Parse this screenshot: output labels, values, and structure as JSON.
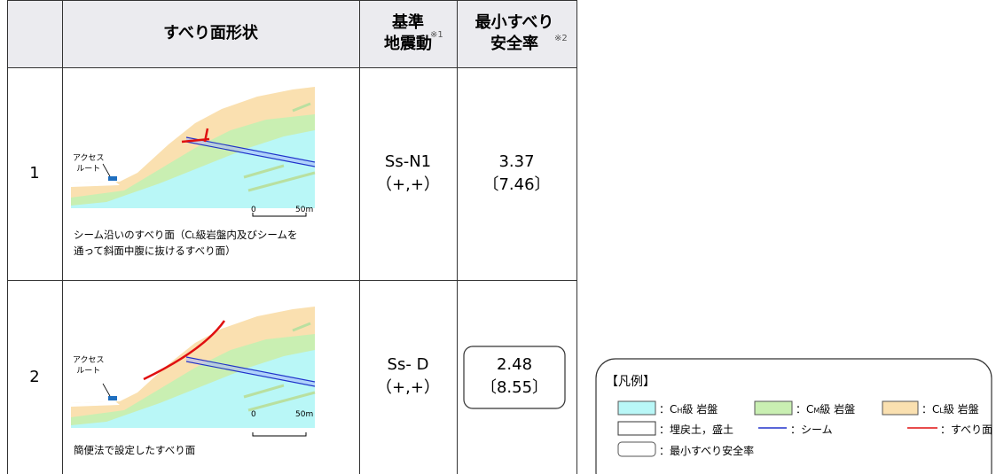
{
  "header": {
    "shape": "すべり面形状",
    "motion": [
      "基準",
      "地震動"
    ],
    "motion_note": "※1",
    "factor": [
      "最小すべり",
      "安全率"
    ],
    "factor_note": "※2"
  },
  "rows": [
    {
      "no": "1",
      "access": [
        "アクセス",
        "ルート"
      ],
      "scale": [
        "0",
        "50m"
      ],
      "caption": [
        [
          "シーム沿いのすべり面（C",
          "L",
          "級岩盤内及びシームを"
        ],
        [
          "通って斜面中腹に抜けるすべり面）"
        ]
      ],
      "motion": "Ss-N1",
      "sign": "（+,+）",
      "factor": "3.37",
      "factor_alt": "〔7.46〕"
    },
    {
      "no": "2",
      "access": [
        "アクセス",
        "ルート"
      ],
      "scale": [
        "0",
        "50m"
      ],
      "caption": [
        [
          "簡便法で設定したすべり面"
        ]
      ],
      "motion": "Ss- D",
      "sign": "（+,+）",
      "factor": "2.48",
      "factor_alt": "〔8.55〕"
    }
  ],
  "legend": {
    "title": "【凡例】",
    "items": [
      [
        "：C",
        "H",
        "級 岩盤"
      ],
      [
        "：C",
        "M",
        "級 岩盤"
      ],
      [
        "：C",
        "L",
        "級 岩盤"
      ],
      [
        "：埋戻土，盛土"
      ],
      [
        "：シーム"
      ],
      [
        "：すべり面"
      ],
      [
        "：最小すべり安全率"
      ]
    ]
  }
}
